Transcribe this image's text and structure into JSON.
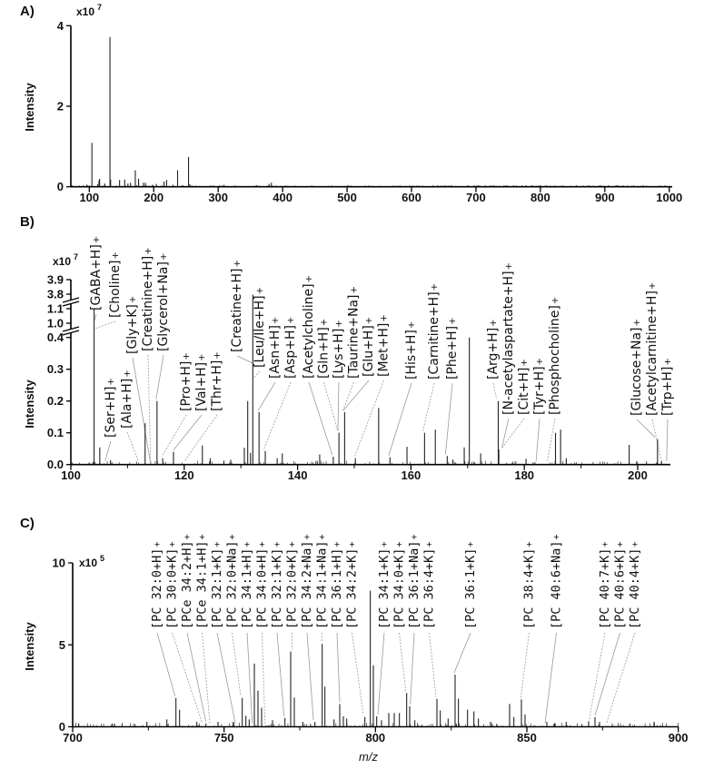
{
  "chart_data": [
    {
      "panel": "A)",
      "type": "bar",
      "xlabel": "",
      "ylabel": "Intensity",
      "y_multiplier": "x10",
      "y_exponent": "7",
      "xlim": [
        71,
        1000
      ],
      "ylim": [
        0,
        4
      ],
      "xticks": [
        100,
        200,
        300,
        400,
        500,
        600,
        700,
        800,
        900,
        1000
      ],
      "yticks": [
        0,
        2,
        4
      ],
      "grid": false,
      "peaks": [
        [
          96,
          0.05
        ],
        [
          104.1,
          1.09
        ],
        [
          113,
          0.06
        ],
        [
          115,
          0.15
        ],
        [
          116,
          0.2
        ],
        [
          124,
          0.08
        ],
        [
          132.1,
          3.72
        ],
        [
          133.1,
          0.18
        ],
        [
          147,
          0.17
        ],
        [
          155,
          0.18
        ],
        [
          160,
          0.08
        ],
        [
          164,
          0.1
        ],
        [
          171.4,
          0.41
        ],
        [
          176.5,
          0.2
        ],
        [
          184,
          0.1
        ],
        [
          187,
          0.1
        ],
        [
          198,
          0.05
        ],
        [
          204,
          0.07
        ],
        [
          216,
          0.13
        ],
        [
          220,
          0.17
        ],
        [
          230,
          0.05
        ],
        [
          237,
          0.41
        ],
        [
          254,
          0.74
        ],
        [
          256,
          0.06
        ],
        [
          309,
          0.05
        ],
        [
          360,
          0.04
        ],
        [
          379,
          0.07
        ],
        [
          382.6,
          0.1
        ],
        [
          800,
          0.04
        ]
      ]
    },
    {
      "panel": "B)",
      "type": "bar",
      "xlabel": "",
      "ylabel": "Intensity",
      "y_multiplier": "x10",
      "y_exponent": "7",
      "xlim": [
        100,
        205.8
      ],
      "ylim": [
        0,
        3.9
      ],
      "y_axis_breaks": [
        [
          0.4,
          1.0
        ],
        [
          1.1,
          3.8
        ]
      ],
      "xticks": [
        100,
        120,
        140,
        160,
        180,
        200
      ],
      "yticks": [
        "0.0",
        "0.1",
        "0.2",
        "0.3",
        "0.4",
        "1.0",
        "1.1",
        "3.8",
        "3.9"
      ],
      "grid": false,
      "peaks": [
        [
          104.1,
          1.1
        ],
        [
          105.1,
          0.054
        ],
        [
          107.0,
          0.014
        ],
        [
          113.1,
          0.13
        ],
        [
          115.2,
          0.2
        ],
        [
          116.2,
          0.02
        ],
        [
          118.1,
          0.04
        ],
        [
          123.2,
          0.06
        ],
        [
          124.6,
          0.02
        ],
        [
          127,
          0.012
        ],
        [
          128.2,
          0.015
        ],
        [
          130.6,
          0.053
        ],
        [
          131.2,
          0.2
        ],
        [
          131.7,
          0.037
        ],
        [
          132.1,
          3.7
        ],
        [
          133.2,
          0.165
        ],
        [
          134.3,
          0.043
        ],
        [
          136.4,
          0.02
        ],
        [
          137.3,
          0.035
        ],
        [
          143.9,
          0.032
        ],
        [
          146.3,
          0.025
        ],
        [
          147.3,
          0.1
        ],
        [
          148.3,
          0.165
        ],
        [
          150.2,
          0.02
        ],
        [
          154.3,
          0.178
        ],
        [
          156.3,
          0.023
        ],
        [
          159.3,
          0.056
        ],
        [
          162.4,
          0.1
        ],
        [
          164.3,
          0.11
        ],
        [
          166.4,
          0.027
        ],
        [
          167.4,
          0.016
        ],
        [
          169.4,
          0.054
        ],
        [
          170.3,
          0.4
        ],
        [
          172.3,
          0.035
        ],
        [
          175.4,
          0.2
        ],
        [
          175.5,
          0.048
        ],
        [
          180.3,
          0.018
        ],
        [
          185.5,
          0.1
        ],
        [
          186.4,
          0.11
        ],
        [
          187.4,
          0.02
        ],
        [
          198.5,
          0.062
        ],
        [
          203.5,
          0.08
        ],
        [
          204.2,
          0.012
        ]
      ],
      "annotations": [
        {
          "text": "[GABA+H]",
          "charge": "+",
          "mz": 104.1
        },
        {
          "text": "[Choline]",
          "charge": "+",
          "mz": 104.2
        },
        {
          "text": "[Ser+H]",
          "charge": "+",
          "mz": 106.05
        },
        {
          "text": "[Ala+H]",
          "charge": "+",
          "mz": 111.9
        },
        {
          "text": "[Gly+K]",
          "charge": "+",
          "mz": 113.99
        },
        {
          "text": "[Creatinine+H]",
          "charge": "+",
          "mz": 114.07
        },
        {
          "text": "[Glycerol+Na]",
          "charge": "+",
          "mz": 115.04
        },
        {
          "text": "[Pro+H]",
          "charge": "+",
          "mz": 116.07
        },
        {
          "text": "[Val+H]",
          "charge": "+",
          "mz": 118.09
        },
        {
          "text": "[Thr+H]",
          "charge": "+",
          "mz": 120.07
        },
        {
          "text": "[Creatine+H]",
          "charge": "+",
          "mz": 132.08
        },
        {
          "text": "[Leu/Ile+H]",
          "charge": "+",
          "mz": 132.1
        },
        {
          "text": "[Asn+H]",
          "charge": "+",
          "mz": 133.06
        },
        {
          "text": "[Asp+H]",
          "charge": "+",
          "mz": 134.04
        },
        {
          "text": "[Acetylcholine]",
          "charge": "+",
          "mz": 146.12
        },
        {
          "text": "[Gln+H]",
          "charge": "+",
          "mz": 147.08
        },
        {
          "text": "[Lys+H]",
          "charge": "+",
          "mz": 147.11
        },
        {
          "text": "[Taurine+Na]",
          "charge": "+",
          "mz": 148.0
        },
        {
          "text": "[Glu+H]",
          "charge": "+",
          "mz": 148.06
        },
        {
          "text": "[Met+H]",
          "charge": "+",
          "mz": 150.06
        },
        {
          "text": "[His+H]",
          "charge": "+",
          "mz": 156.08
        },
        {
          "text": "[Carnitine+H]",
          "charge": "+",
          "mz": 162.11
        },
        {
          "text": "[Phe+H]",
          "charge": "+",
          "mz": 166.09
        },
        {
          "text": "[Arg+H]",
          "charge": "+",
          "mz": 175.12
        },
        {
          "text": "[N-acetylaspartate+H]",
          "charge": "+",
          "mz": 176.06
        },
        {
          "text": "[Cit+H]",
          "charge": "+",
          "mz": 176.1
        },
        {
          "text": "[Tyr+H]",
          "charge": "+",
          "mz": 182.08
        },
        {
          "text": "[Phosphocholine]",
          "charge": "+",
          "mz": 184.07
        },
        {
          "text": "[Glucose+Na]",
          "charge": "+",
          "mz": 203.05
        },
        {
          "text": "[Acetylcarnitine+H]",
          "charge": "+",
          "mz": 204.12
        },
        {
          "text": "[Trp+H]",
          "charge": "+",
          "mz": 205.1
        }
      ]
    },
    {
      "panel": "C)",
      "type": "bar",
      "xlabel": "m/z",
      "ylabel": "Intensity",
      "y_multiplier": "x10",
      "y_exponent": "5",
      "xlim": [
        700,
        900
      ],
      "ylim": [
        0,
        10
      ],
      "xticks": [
        700,
        750,
        800,
        850,
        900
      ],
      "yticks": [
        0,
        5,
        10
      ],
      "grid": false,
      "peaks": [
        [
          702,
          0.2
        ],
        [
          713,
          0.2
        ],
        [
          724.5,
          0.3
        ],
        [
          731.1,
          0.45
        ],
        [
          734.1,
          1.76
        ],
        [
          735.3,
          1.03
        ],
        [
          741,
          0.3
        ],
        [
          744,
          0.2
        ],
        [
          748,
          0.3
        ],
        [
          753,
          0.3
        ],
        [
          756.0,
          1.76
        ],
        [
          757.2,
          0.67
        ],
        [
          758.3,
          0.45
        ],
        [
          760.0,
          3.86
        ],
        [
          761.2,
          2.2
        ],
        [
          762.4,
          1.16
        ],
        [
          766,
          0.4
        ],
        [
          770.1,
          0.54
        ],
        [
          772.0,
          4.59
        ],
        [
          773.2,
          1.78
        ],
        [
          776,
          0.3
        ],
        [
          780,
          0.3
        ],
        [
          782.4,
          5.06
        ],
        [
          783.3,
          2.45
        ],
        [
          786.3,
          0.45
        ],
        [
          788.2,
          1.39
        ],
        [
          789.4,
          0.64
        ],
        [
          790.5,
          0.5
        ],
        [
          796.5,
          0.6
        ],
        [
          798.3,
          8.31
        ],
        [
          799.3,
          3.75
        ],
        [
          800.4,
          0.64
        ],
        [
          802,
          0.4
        ],
        [
          804.4,
          0.84
        ],
        [
          806.2,
          0.84
        ],
        [
          807.9,
          0.84
        ],
        [
          810.3,
          2.06
        ],
        [
          811.3,
          1.25
        ],
        [
          813,
          0.4
        ],
        [
          820.3,
          1.7
        ],
        [
          821.4,
          1.0
        ],
        [
          824,
          0.5
        ],
        [
          826.3,
          3.18
        ],
        [
          827.4,
          1.72
        ],
        [
          830.4,
          1.05
        ],
        [
          832.5,
          0.94
        ],
        [
          834,
          0.5
        ],
        [
          838,
          0.3
        ],
        [
          844.3,
          1.39
        ],
        [
          845.7,
          0.6
        ],
        [
          848.2,
          1.67
        ],
        [
          849.4,
          0.75
        ],
        [
          856.6,
          0.3
        ],
        [
          863,
          0.3
        ],
        [
          870.4,
          0.34
        ],
        [
          872.5,
          0.58
        ],
        [
          874,
          0.3
        ],
        [
          884,
          0.2
        ],
        [
          892,
          0.3
        ]
      ],
      "annotations": [
        {
          "text": "[PC 32:0+H]",
          "charge": "+",
          "mz": 733.8
        },
        {
          "text": "[PC 30:0+K]",
          "charge": "+",
          "mz": 742.8
        },
        {
          "text": "[PCe 34:2+H]",
          "charge": "+",
          "mz": 744.0
        },
        {
          "text": "[PCe 34:1+H]",
          "charge": "+",
          "mz": 745.3
        },
        {
          "text": "[PC 32:1+K]",
          "charge": "+",
          "mz": 753.7
        },
        {
          "text": "[PC 32:0+Na]",
          "charge": "+",
          "mz": 755.5
        },
        {
          "text": "[PC 34:1+H]",
          "charge": "+",
          "mz": 759.3
        },
        {
          "text": "[PC 34:0+H]",
          "charge": "+",
          "mz": 763.5
        },
        {
          "text": "[PC 32:1+K]",
          "charge": "+",
          "mz": 769.8
        },
        {
          "text": "[PC 32:0+K]",
          "charge": "+",
          "mz": 772.5
        },
        {
          "text": "[PC 34:2+Na]",
          "charge": "+",
          "mz": 779.5
        },
        {
          "text": "[PC 34:1+Na]",
          "charge": "+",
          "mz": 782.2
        },
        {
          "text": "[PC 36:1+H]",
          "charge": "+",
          "mz": 788.2
        },
        {
          "text": "[PC 34:2+K]",
          "charge": "+",
          "mz": 796.0
        },
        {
          "text": "[PC 34:1+K]",
          "charge": "+",
          "mz": 800.8
        },
        {
          "text": "[PC 34:0+K]",
          "charge": "+",
          "mz": 810.0
        },
        {
          "text": "[PC 36:1+Na]",
          "charge": "+",
          "mz": 811.5
        },
        {
          "text": "[PC 36:4+K]",
          "charge": "+",
          "mz": 820.0
        },
        {
          "text": "[PC 36:1+K]",
          "charge": "+",
          "mz": 826.0
        },
        {
          "text": "[PC 38:4+K]",
          "charge": "+",
          "mz": 848.0
        },
        {
          "text": "[PC 40:6+Na]",
          "charge": "+",
          "mz": 856.0
        },
        {
          "text": "[PC 40:7+K]",
          "charge": "+",
          "mz": 870.6
        },
        {
          "text": "[PC 40:6+K]",
          "charge": "+",
          "mz": 872.5
        },
        {
          "text": "[PC 40:4+K]",
          "charge": "+",
          "mz": 876.3
        }
      ]
    }
  ]
}
